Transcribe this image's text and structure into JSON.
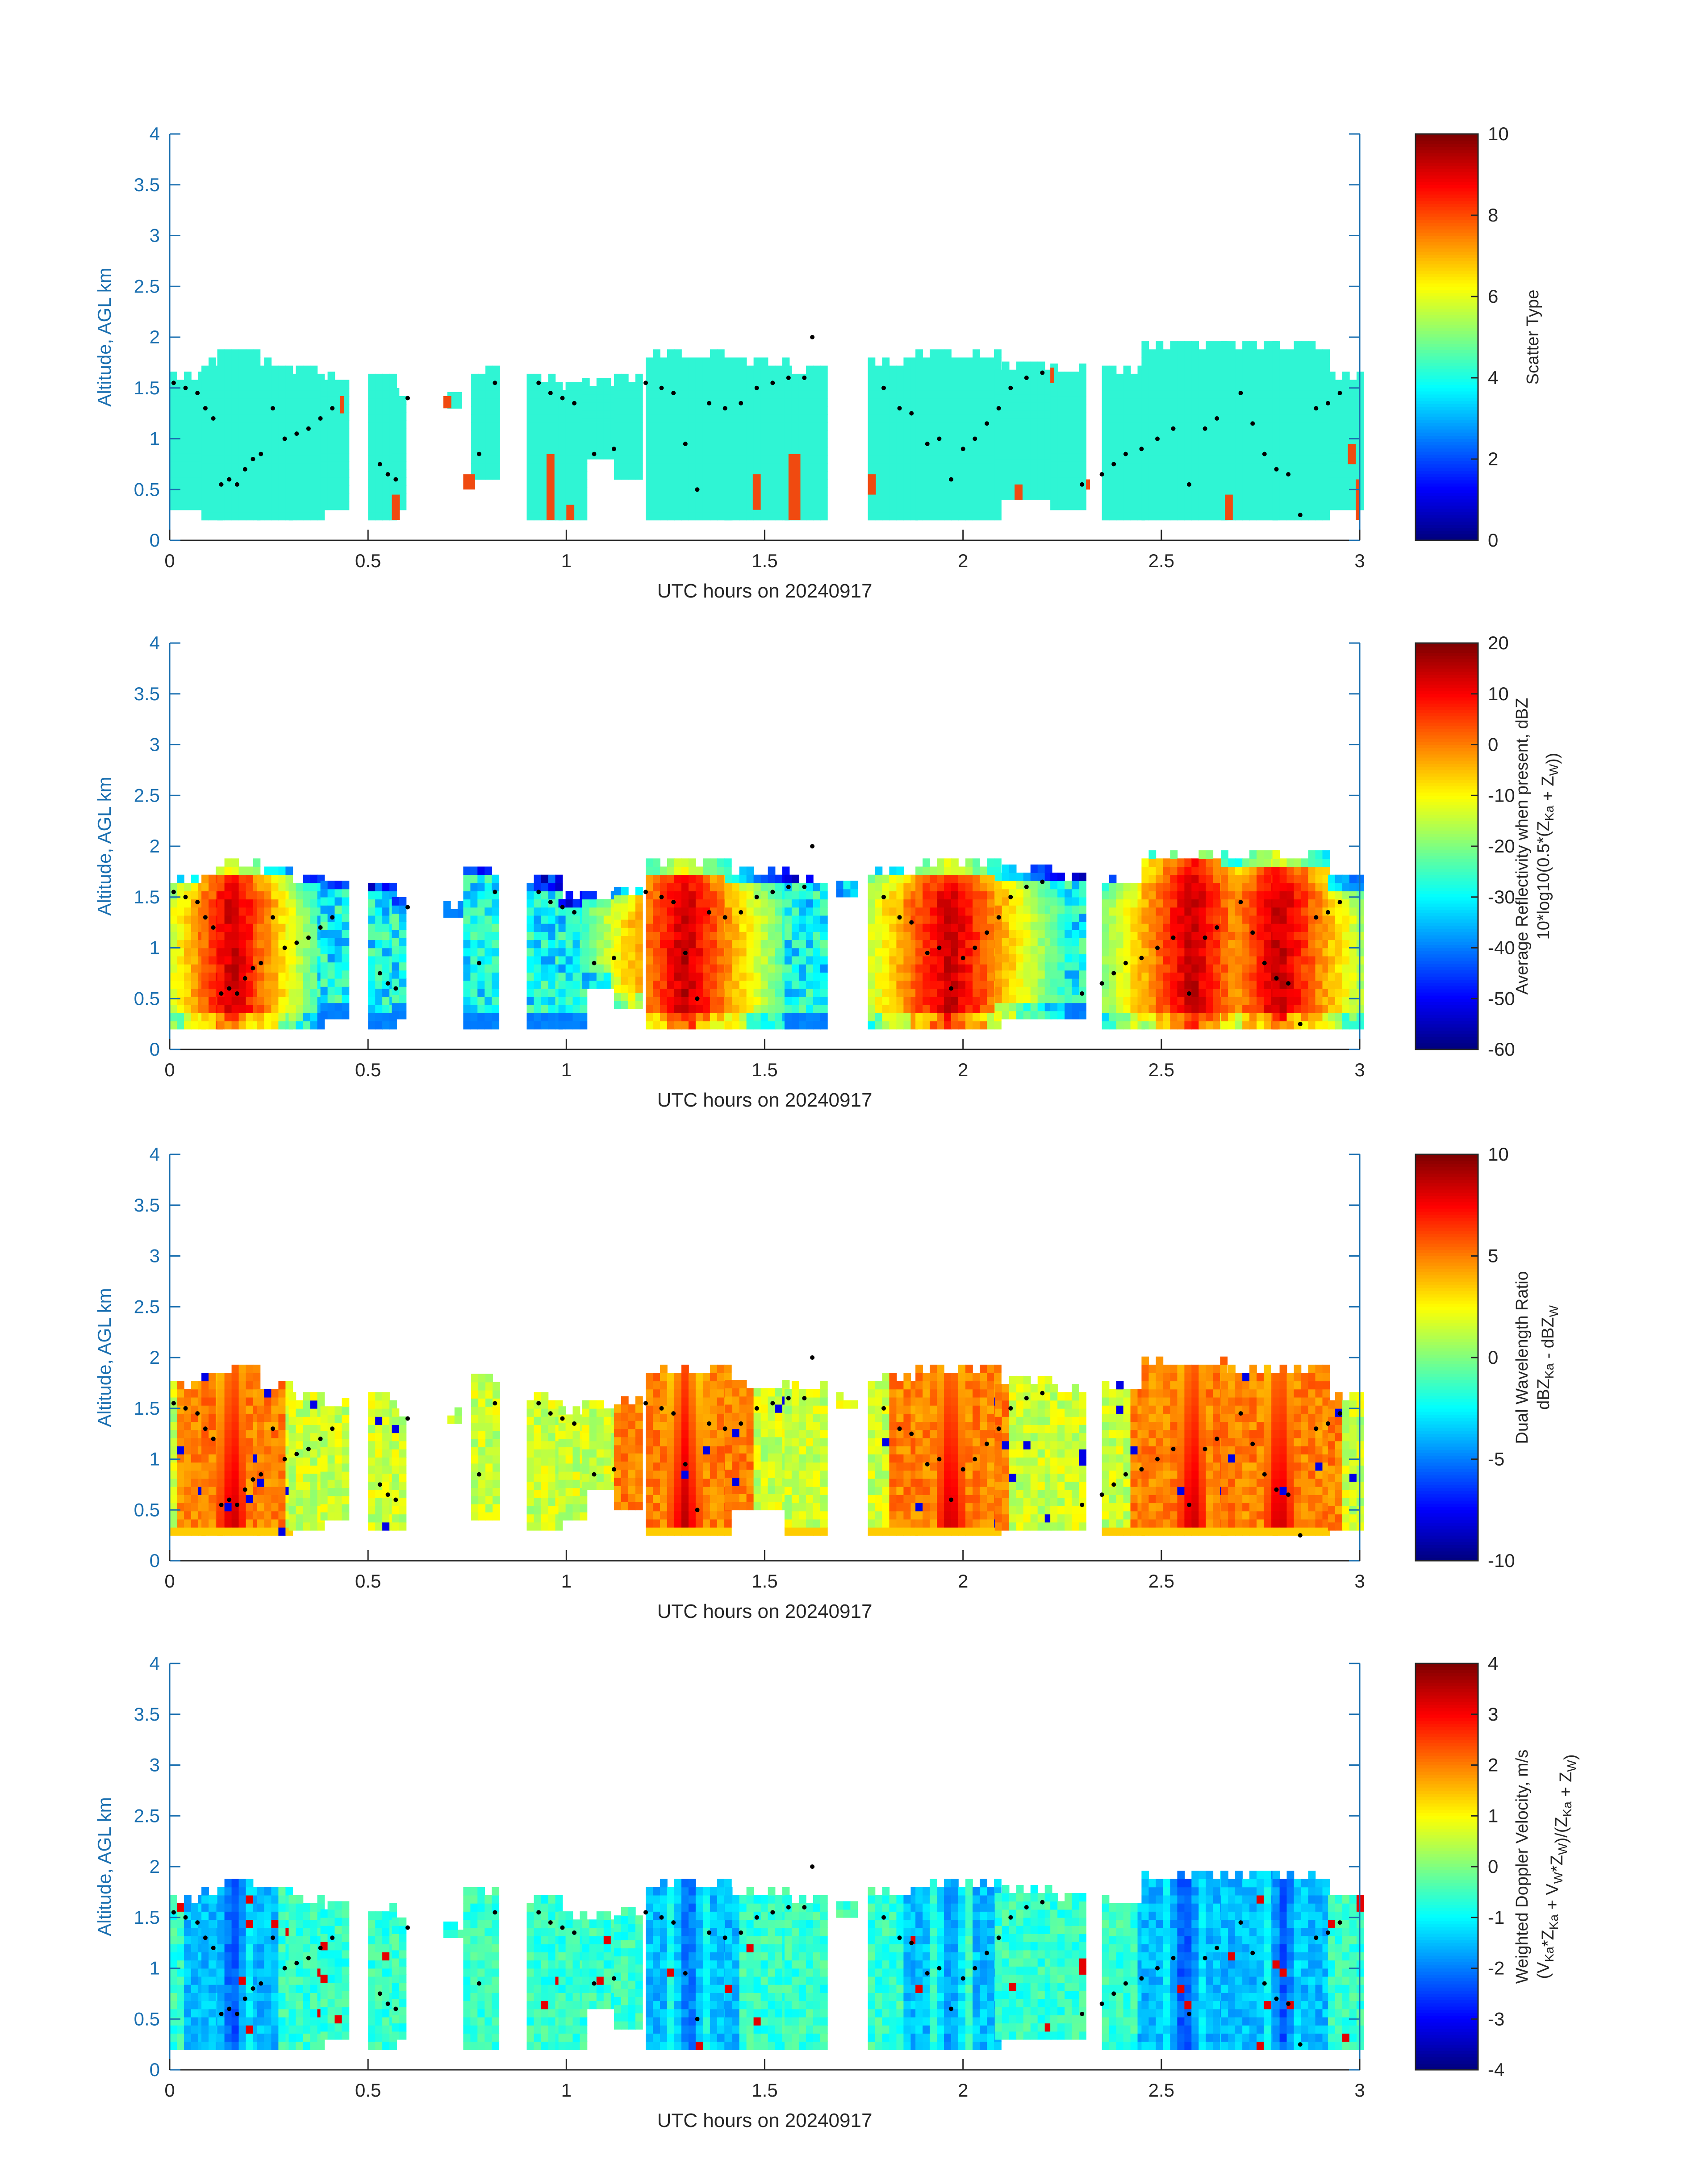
{
  "colors": {
    "axis_blue": "#1a6fb0",
    "text": "#262626",
    "scatter_fill": "#2ff5d4",
    "scatter_accent": "#f04a10",
    "marker": "#000000"
  },
  "chart_data": [
    {
      "type": "heatmap",
      "xlabel": "UTC hours on 20240917",
      "ylabel": "Altitude, AGL km",
      "xlim": [
        0,
        3
      ],
      "ylim": [
        0,
        4
      ],
      "xticks": [
        "0",
        "0.5",
        "1",
        "1.5",
        "2",
        "2.5",
        "3"
      ],
      "yticks": [
        "0",
        "0.5",
        "1",
        "1.5",
        "2",
        "2.5",
        "3",
        "3.5",
        "4"
      ],
      "colormap": "jet",
      "colorbar": {
        "label_lines": [
          "Scatter Type"
        ],
        "range": [
          0,
          10
        ],
        "ticks": [
          "0",
          "2",
          "4",
          "6",
          "8",
          "10"
        ]
      },
      "field": "scatter",
      "columns": [
        [
          0.0,
          0.08,
          0.3,
          1.65
        ],
        [
          0.08,
          0.12,
          0.2,
          1.8
        ],
        [
          0.12,
          0.22,
          0.2,
          1.85
        ],
        [
          0.22,
          0.3,
          0.2,
          1.8
        ],
        [
          0.3,
          0.38,
          0.2,
          1.7
        ],
        [
          0.38,
          0.44,
          0.3,
          1.65
        ],
        [
          0.5,
          0.56,
          0.2,
          1.6
        ],
        [
          0.56,
          0.59,
          0.3,
          1.5
        ],
        [
          0.7,
          0.73,
          1.3,
          1.45
        ],
        [
          0.76,
          0.82,
          0.6,
          1.7
        ],
        [
          0.9,
          0.98,
          0.2,
          1.6
        ],
        [
          0.98,
          1.04,
          0.2,
          1.5
        ],
        [
          1.04,
          1.12,
          0.8,
          1.55
        ],
        [
          1.12,
          1.18,
          0.6,
          1.6
        ],
        [
          1.2,
          1.4,
          0.2,
          1.85
        ],
        [
          1.4,
          1.55,
          0.2,
          1.75
        ],
        [
          1.55,
          1.65,
          0.2,
          1.7
        ],
        [
          1.76,
          1.88,
          0.2,
          1.8
        ],
        [
          1.88,
          2.08,
          0.2,
          1.85
        ],
        [
          2.08,
          2.22,
          0.4,
          1.75
        ],
        [
          2.22,
          2.3,
          0.3,
          1.7
        ],
        [
          2.35,
          2.45,
          0.2,
          1.7
        ],
        [
          2.45,
          2.65,
          0.2,
          1.95
        ],
        [
          2.65,
          2.78,
          0.2,
          1.9
        ],
        [
          2.78,
          2.92,
          0.2,
          1.9
        ],
        [
          2.92,
          3.0,
          0.3,
          1.6
        ]
      ],
      "accent_segments": [
        [
          0.43,
          0.44,
          1.25,
          1.42
        ],
        [
          0.56,
          0.58,
          0.2,
          0.45
        ],
        [
          0.69,
          0.71,
          1.3,
          1.42
        ],
        [
          0.74,
          0.77,
          0.5,
          0.65
        ],
        [
          0.95,
          0.97,
          0.2,
          0.85
        ],
        [
          1.0,
          1.02,
          0.2,
          0.35
        ],
        [
          1.47,
          1.49,
          0.3,
          0.65
        ],
        [
          1.56,
          1.59,
          0.2,
          0.85
        ],
        [
          1.76,
          1.78,
          0.45,
          0.65
        ],
        [
          2.13,
          2.15,
          0.4,
          0.55
        ],
        [
          2.22,
          2.23,
          1.55,
          1.7
        ],
        [
          2.31,
          2.32,
          0.5,
          0.6
        ],
        [
          2.66,
          2.68,
          0.2,
          0.45
        ],
        [
          2.97,
          2.99,
          0.75,
          0.95
        ],
        [
          2.99,
          3.0,
          0.2,
          0.6
        ]
      ],
      "dots": [
        [
          0.01,
          1.55
        ],
        [
          0.04,
          1.5
        ],
        [
          0.07,
          1.45
        ],
        [
          0.09,
          1.3
        ],
        [
          0.11,
          1.2
        ],
        [
          0.13,
          0.55
        ],
        [
          0.15,
          0.6
        ],
        [
          0.17,
          0.55
        ],
        [
          0.19,
          0.7
        ],
        [
          0.21,
          0.8
        ],
        [
          0.23,
          0.85
        ],
        [
          0.26,
          1.3
        ],
        [
          0.29,
          1.0
        ],
        [
          0.32,
          1.05
        ],
        [
          0.35,
          1.1
        ],
        [
          0.38,
          1.2
        ],
        [
          0.41,
          1.3
        ],
        [
          0.53,
          0.75
        ],
        [
          0.55,
          0.65
        ],
        [
          0.57,
          0.6
        ],
        [
          0.6,
          1.4
        ],
        [
          0.78,
          0.85
        ],
        [
          0.82,
          1.55
        ],
        [
          0.93,
          1.55
        ],
        [
          0.96,
          1.45
        ],
        [
          0.99,
          1.4
        ],
        [
          1.02,
          1.35
        ],
        [
          1.07,
          0.85
        ],
        [
          1.12,
          0.9
        ],
        [
          1.2,
          1.55
        ],
        [
          1.24,
          1.5
        ],
        [
          1.27,
          1.45
        ],
        [
          1.3,
          0.95
        ],
        [
          1.33,
          0.5
        ],
        [
          1.36,
          1.35
        ],
        [
          1.4,
          1.3
        ],
        [
          1.44,
          1.35
        ],
        [
          1.48,
          1.5
        ],
        [
          1.52,
          1.55
        ],
        [
          1.56,
          1.6
        ],
        [
          1.6,
          1.6
        ],
        [
          1.62,
          2.0
        ],
        [
          1.8,
          1.5
        ],
        [
          1.84,
          1.3
        ],
        [
          1.87,
          1.25
        ],
        [
          1.91,
          0.95
        ],
        [
          1.94,
          1.0
        ],
        [
          1.97,
          0.6
        ],
        [
          2.0,
          0.9
        ],
        [
          2.03,
          1.0
        ],
        [
          2.06,
          1.15
        ],
        [
          2.09,
          1.3
        ],
        [
          2.12,
          1.5
        ],
        [
          2.16,
          1.6
        ],
        [
          2.2,
          1.65
        ],
        [
          2.3,
          0.55
        ],
        [
          2.35,
          0.65
        ],
        [
          2.38,
          0.75
        ],
        [
          2.41,
          0.85
        ],
        [
          2.45,
          0.9
        ],
        [
          2.49,
          1.0
        ],
        [
          2.53,
          1.1
        ],
        [
          2.57,
          0.55
        ],
        [
          2.61,
          1.1
        ],
        [
          2.64,
          1.2
        ],
        [
          2.7,
          1.45
        ],
        [
          2.73,
          1.15
        ],
        [
          2.76,
          0.85
        ],
        [
          2.79,
          0.7
        ],
        [
          2.82,
          0.65
        ],
        [
          2.85,
          0.25
        ],
        [
          2.89,
          1.3
        ],
        [
          2.92,
          1.35
        ],
        [
          2.95,
          1.45
        ]
      ]
    },
    {
      "type": "heatmap",
      "xlabel": "UTC hours on 20240917",
      "ylabel": "Altitude, AGL km",
      "xlim": [
        0,
        3
      ],
      "ylim": [
        0,
        4
      ],
      "xticks": [
        "0",
        "0.5",
        "1",
        "1.5",
        "2",
        "2.5",
        "3"
      ],
      "yticks": [
        "0",
        "0.5",
        "1",
        "1.5",
        "2",
        "2.5",
        "3",
        "3.5",
        "4"
      ],
      "colormap": "jet",
      "colorbar": {
        "label_lines": [
          "Average Reflectivity when present, dBZ",
          "10*log10(0.5*(Z_Ka + Z_W))"
        ],
        "range": [
          -60,
          20
        ],
        "ticks": [
          "-60",
          "-50",
          "-40",
          "-30",
          "-20",
          "-10",
          "0",
          "10",
          "20"
        ]
      },
      "field": "reflectivity",
      "columns": [
        [
          0.0,
          0.08,
          0.2,
          1.7
        ],
        [
          0.08,
          0.12,
          0.2,
          1.8
        ],
        [
          0.12,
          0.22,
          0.2,
          1.85
        ],
        [
          0.22,
          0.3,
          0.2,
          1.8
        ],
        [
          0.3,
          0.38,
          0.2,
          1.7
        ],
        [
          0.38,
          0.44,
          0.3,
          1.65
        ],
        [
          0.5,
          0.56,
          0.2,
          1.6
        ],
        [
          0.56,
          0.59,
          0.3,
          1.5
        ],
        [
          0.69,
          0.73,
          1.3,
          1.45
        ],
        [
          0.74,
          0.82,
          0.2,
          1.8
        ],
        [
          0.9,
          0.98,
          0.2,
          1.65
        ],
        [
          0.98,
          1.04,
          0.2,
          1.5
        ],
        [
          1.04,
          1.12,
          0.6,
          1.55
        ],
        [
          1.12,
          1.18,
          0.4,
          1.6
        ],
        [
          1.2,
          1.4,
          0.2,
          1.85
        ],
        [
          1.4,
          1.55,
          0.2,
          1.75
        ],
        [
          1.55,
          1.65,
          0.2,
          1.7
        ],
        [
          1.68,
          1.72,
          1.5,
          1.65
        ],
        [
          1.76,
          1.88,
          0.2,
          1.8
        ],
        [
          1.88,
          2.08,
          0.2,
          1.85
        ],
        [
          2.08,
          2.22,
          0.3,
          1.75
        ],
        [
          2.22,
          2.3,
          0.3,
          1.7
        ],
        [
          2.35,
          2.45,
          0.2,
          1.7
        ],
        [
          2.45,
          2.65,
          0.2,
          1.95
        ],
        [
          2.65,
          2.78,
          0.2,
          1.9
        ],
        [
          2.78,
          2.92,
          0.2,
          1.9
        ],
        [
          2.92,
          3.0,
          0.2,
          1.65
        ]
      ],
      "hot_centers": [
        [
          0.15,
          0.22
        ],
        [
          1.29,
          0.26
        ],
        [
          1.96,
          0.28
        ],
        [
          2.57,
          0.26
        ],
        [
          2.79,
          0.26
        ]
      ]
    },
    {
      "type": "heatmap",
      "xlabel": "UTC hours on 20240917",
      "ylabel": "Altitude, AGL km",
      "xlim": [
        0,
        3
      ],
      "ylim": [
        0,
        4
      ],
      "xticks": [
        "0",
        "0.5",
        "1",
        "1.5",
        "2",
        "2.5",
        "3"
      ],
      "yticks": [
        "0",
        "0.5",
        "1",
        "1.5",
        "2",
        "2.5",
        "3",
        "3.5",
        "4"
      ],
      "colormap": "jet",
      "colorbar": {
        "label_lines": [
          "Dual Wavelength Ratio",
          "dBZ_Ka - dBZ_W"
        ],
        "range": [
          -10,
          10
        ],
        "ticks": [
          "-10",
          "-5",
          "0",
          "5",
          "10"
        ]
      },
      "field": "dwr",
      "columns": [
        [
          0.0,
          0.08,
          0.25,
          1.7
        ],
        [
          0.08,
          0.12,
          0.25,
          1.8
        ],
        [
          0.12,
          0.22,
          0.25,
          1.9
        ],
        [
          0.22,
          0.3,
          0.25,
          1.75
        ],
        [
          0.3,
          0.38,
          0.3,
          1.65
        ],
        [
          0.38,
          0.44,
          0.4,
          1.6
        ],
        [
          0.5,
          0.56,
          0.3,
          1.6
        ],
        [
          0.56,
          0.59,
          0.3,
          1.5
        ],
        [
          0.7,
          0.73,
          1.35,
          1.45
        ],
        [
          0.76,
          0.82,
          0.4,
          1.8
        ],
        [
          0.9,
          0.98,
          0.3,
          1.6
        ],
        [
          0.98,
          1.04,
          0.4,
          1.5
        ],
        [
          1.04,
          1.12,
          0.7,
          1.55
        ],
        [
          1.12,
          1.18,
          0.5,
          1.6
        ],
        [
          1.2,
          1.4,
          0.25,
          1.9
        ],
        [
          1.4,
          1.55,
          0.5,
          1.75
        ],
        [
          1.55,
          1.65,
          0.25,
          1.7
        ],
        [
          1.68,
          1.72,
          1.5,
          1.65
        ],
        [
          1.76,
          1.88,
          0.25,
          1.85
        ],
        [
          1.88,
          2.08,
          0.25,
          1.9
        ],
        [
          2.08,
          2.22,
          0.3,
          1.75
        ],
        [
          2.22,
          2.3,
          0.3,
          1.7
        ],
        [
          2.35,
          2.45,
          0.25,
          1.75
        ],
        [
          2.45,
          2.65,
          0.25,
          1.95
        ],
        [
          2.65,
          2.78,
          0.25,
          1.9
        ],
        [
          2.78,
          2.92,
          0.25,
          1.9
        ],
        [
          2.92,
          3.0,
          0.3,
          1.65
        ]
      ],
      "hot_centers": [
        [
          0.15,
          0.27
        ],
        [
          1.29,
          0.35
        ],
        [
          1.96,
          0.3
        ],
        [
          2.57,
          0.3
        ],
        [
          2.79,
          0.3
        ]
      ]
    },
    {
      "type": "heatmap",
      "xlabel": "UTC hours on 20240917",
      "ylabel": "Altitude, AGL km",
      "xlim": [
        0,
        3
      ],
      "ylim": [
        0,
        4
      ],
      "xticks": [
        "0",
        "0.5",
        "1",
        "1.5",
        "2",
        "2.5",
        "3"
      ],
      "yticks": [
        "0",
        "0.5",
        "1",
        "1.5",
        "2",
        "2.5",
        "3",
        "3.5",
        "4"
      ],
      "colormap": "jet",
      "colorbar": {
        "label_lines": [
          "Weighted Doppler Velocity, m/s",
          "(V_Ka*Z_Ka + V_W*Z_W)/(Z_Ka + Z_W)"
        ],
        "range": [
          -4,
          4
        ],
        "ticks": [
          "-4",
          "-3",
          "-2",
          "-1",
          "0",
          "1",
          "2",
          "3",
          "4"
        ]
      },
      "field": "velocity",
      "columns": [
        [
          0.0,
          0.08,
          0.2,
          1.7
        ],
        [
          0.08,
          0.12,
          0.2,
          1.8
        ],
        [
          0.12,
          0.22,
          0.2,
          1.85
        ],
        [
          0.22,
          0.3,
          0.2,
          1.8
        ],
        [
          0.3,
          0.38,
          0.2,
          1.7
        ],
        [
          0.38,
          0.44,
          0.3,
          1.65
        ],
        [
          0.5,
          0.56,
          0.2,
          1.6
        ],
        [
          0.56,
          0.59,
          0.3,
          1.5
        ],
        [
          0.69,
          0.73,
          1.3,
          1.45
        ],
        [
          0.74,
          0.82,
          0.2,
          1.8
        ],
        [
          0.9,
          0.98,
          0.2,
          1.65
        ],
        [
          0.98,
          1.04,
          0.2,
          1.5
        ],
        [
          1.04,
          1.12,
          0.6,
          1.55
        ],
        [
          1.12,
          1.18,
          0.4,
          1.6
        ],
        [
          1.2,
          1.4,
          0.2,
          1.85
        ],
        [
          1.4,
          1.55,
          0.2,
          1.75
        ],
        [
          1.55,
          1.65,
          0.2,
          1.7
        ],
        [
          1.68,
          1.72,
          1.5,
          1.65
        ],
        [
          1.76,
          1.88,
          0.2,
          1.8
        ],
        [
          1.88,
          2.08,
          0.2,
          1.85
        ],
        [
          2.08,
          2.22,
          0.3,
          1.75
        ],
        [
          2.22,
          2.3,
          0.3,
          1.7
        ],
        [
          2.35,
          2.45,
          0.2,
          1.7
        ],
        [
          2.45,
          2.65,
          0.2,
          1.95
        ],
        [
          2.65,
          2.78,
          0.2,
          1.9
        ],
        [
          2.78,
          2.92,
          0.2,
          1.9
        ],
        [
          2.92,
          3.0,
          0.2,
          1.65
        ]
      ],
      "hot_centers": [
        [
          0.15,
          -2.5
        ],
        [
          1.3,
          -2.3
        ],
        [
          1.96,
          -2.0
        ],
        [
          2.55,
          -2.6
        ],
        [
          2.8,
          -2.4
        ]
      ]
    }
  ]
}
